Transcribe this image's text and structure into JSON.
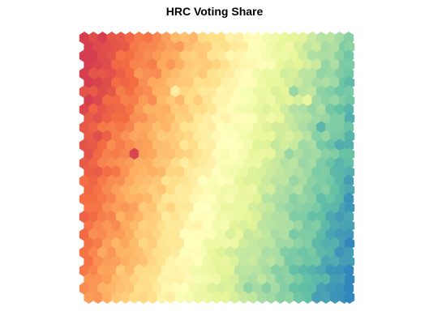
{
  "chart_data": {
    "type": "heatmap",
    "title": "HRC Voting Share",
    "xlabel": "",
    "ylabel": "",
    "grid": false,
    "legend": "none",
    "cells": "hexagonal",
    "grid_cols": 30,
    "grid_rows": 30,
    "colormap": [
      "#d53e4f",
      "#f46d43",
      "#fdae61",
      "#fee08b",
      "#ffffbf",
      "#e6f598",
      "#abdda4",
      "#66c2a5",
      "#3288bd"
    ],
    "colormap_direction": "low share = red, high share = blue",
    "trend": "value increases left to right; the yellow midpoint band runs diagonally from lower-left to upper-right",
    "outliers": [
      {
        "col": 10,
        "row": 6,
        "value": 0.42
      },
      {
        "col": 5,
        "row": 13,
        "value": 0.02
      },
      {
        "col": 13,
        "row": 11,
        "value": 0.44
      },
      {
        "col": 23,
        "row": 6,
        "value": 0.78
      },
      {
        "col": 24,
        "row": 7,
        "value": 0.6
      },
      {
        "col": 26,
        "row": 10,
        "value": 0.9
      },
      {
        "col": 28,
        "row": 12,
        "value": 0.92
      },
      {
        "col": 22,
        "row": 13,
        "value": 0.78
      },
      {
        "col": 25,
        "row": 14,
        "value": 0.76
      },
      {
        "col": 18,
        "row": 28,
        "value": 0.8
      }
    ]
  }
}
